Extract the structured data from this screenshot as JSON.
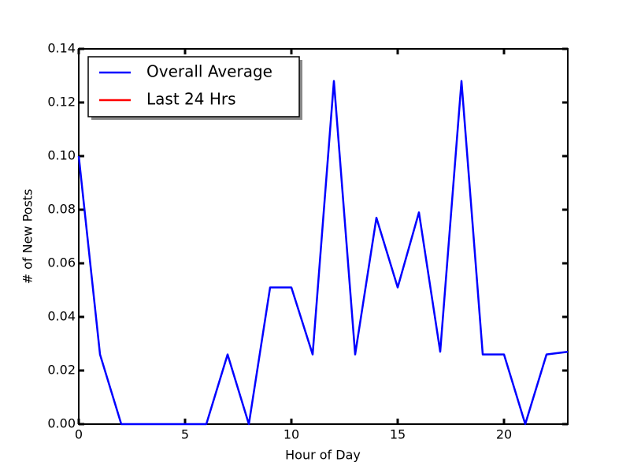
{
  "chart_data": {
    "type": "line",
    "x": [
      0,
      1,
      2,
      3,
      4,
      5,
      6,
      7,
      8,
      9,
      10,
      11,
      12,
      13,
      14,
      15,
      16,
      17,
      18,
      19,
      20,
      21,
      22,
      23
    ],
    "series": [
      {
        "name": "Overall Average",
        "color": "#0000ff",
        "values": [
          0.1,
          0.026,
          0,
          0,
          0,
          0,
          0,
          0.026,
          0,
          0.051,
          0.051,
          0.026,
          0.128,
          0.026,
          0.077,
          0.051,
          0.079,
          0.027,
          0.128,
          0.026,
          0.026,
          0,
          0.026,
          0.027
        ]
      },
      {
        "name": "Last 24 Hrs",
        "color": "#ff0000",
        "values": [
          null,
          null,
          null,
          null,
          null,
          null,
          null,
          null,
          null,
          null,
          null,
          null,
          null,
          null,
          null,
          null,
          null,
          null,
          null,
          null,
          null,
          null,
          null,
          null
        ]
      }
    ],
    "xlabel": "Hour of Day",
    "ylabel": "# of New Posts",
    "xlim": [
      0,
      23
    ],
    "xticks": [
      0,
      5,
      10,
      15,
      20
    ],
    "ylim": [
      0,
      0.14
    ],
    "yticks": [
      {
        "value": 0,
        "label": "0.00"
      },
      0.02,
      0.04,
      0.06,
      0.08,
      {
        "value": 0.1,
        "label": "0.10"
      },
      0.12,
      0.14
    ],
    "grid": false,
    "legend": "upper left"
  }
}
